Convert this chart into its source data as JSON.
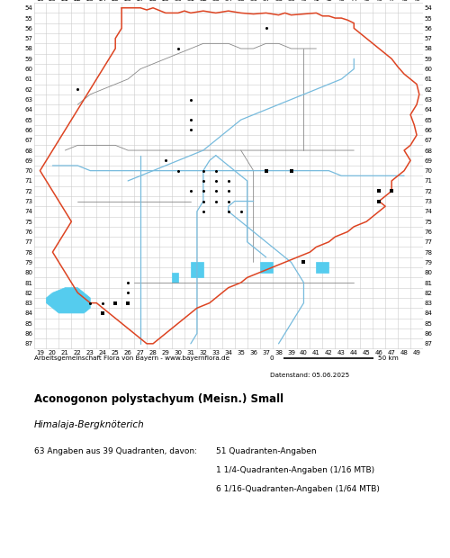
{
  "title": "Aconogonon polystachyum (Meisn.) Small",
  "subtitle": "Himalaja-Bergknöterich",
  "footer_left": "Arbeitsgemeinschaft Flora von Bayern - www.bayernflora.de",
  "footer_date": "Datenstand: 05.06.2025",
  "stats_line1": "63 Angaben aus 39 Quadranten, davon:",
  "stats_col2_line1": "51 Quadranten-Angaben",
  "stats_col2_line2": "1 1/4-Quadranten-Angaben (1/16 MTB)",
  "stats_col2_line3": "6 1/16-Quadranten-Angaben (1/64 MTB)",
  "scale_label": "50 km",
  "scale_zero": "0",
  "x_ticks": [
    19,
    20,
    21,
    22,
    23,
    24,
    25,
    26,
    27,
    28,
    29,
    30,
    31,
    32,
    33,
    34,
    35,
    36,
    37,
    38,
    39,
    40,
    41,
    42,
    43,
    44,
    45,
    46,
    47,
    48,
    49
  ],
  "y_ticks": [
    54,
    55,
    56,
    57,
    58,
    59,
    60,
    61,
    62,
    63,
    64,
    65,
    66,
    67,
    68,
    69,
    70,
    71,
    72,
    73,
    74,
    75,
    76,
    77,
    78,
    79,
    80,
    81,
    82,
    83,
    84,
    85,
    86,
    87
  ],
  "x_min": 19,
  "x_max": 49,
  "y_min": 54,
  "y_max": 87,
  "grid_color": "#cccccc",
  "bg_color": "#ffffff",
  "dot_color": "#000000",
  "square_color": "#000000",
  "occurrence_dots": [
    [
      37,
      56
    ],
    [
      30,
      58
    ],
    [
      22,
      62
    ],
    [
      31,
      63
    ],
    [
      31,
      65
    ],
    [
      31,
      66
    ],
    [
      29,
      69
    ],
    [
      30,
      70
    ],
    [
      32,
      70
    ],
    [
      33,
      70
    ],
    [
      32,
      71
    ],
    [
      33,
      71
    ],
    [
      34,
      71
    ],
    [
      31,
      72
    ],
    [
      32,
      72
    ],
    [
      33,
      72
    ],
    [
      34,
      72
    ],
    [
      32,
      73
    ],
    [
      33,
      73
    ],
    [
      34,
      73
    ],
    [
      32,
      74
    ],
    [
      34,
      74
    ],
    [
      35,
      74
    ],
    [
      40,
      79
    ],
    [
      26,
      81
    ],
    [
      26,
      82
    ],
    [
      23,
      83
    ],
    [
      24,
      83
    ],
    [
      26,
      83
    ],
    [
      24,
      84
    ]
  ],
  "occurrence_squares": [
    [
      39,
      70
    ],
    [
      37,
      70
    ],
    [
      46,
      72
    ],
    [
      47,
      72
    ],
    [
      46,
      73
    ],
    [
      40,
      79
    ],
    [
      26,
      83
    ],
    [
      25,
      83
    ],
    [
      24,
      84
    ]
  ],
  "bavaria_border": [
    [
      25.5,
      54.0
    ],
    [
      26.0,
      54.0
    ],
    [
      27.0,
      54.0
    ],
    [
      27.5,
      54.2
    ],
    [
      28.0,
      54.0
    ],
    [
      29.0,
      54.5
    ],
    [
      30.0,
      54.5
    ],
    [
      30.5,
      54.3
    ],
    [
      31.0,
      54.5
    ],
    [
      32.0,
      54.3
    ],
    [
      33.0,
      54.5
    ],
    [
      34.0,
      54.3
    ],
    [
      35.0,
      54.5
    ],
    [
      36.0,
      54.6
    ],
    [
      37.0,
      54.5
    ],
    [
      38.0,
      54.7
    ],
    [
      38.5,
      54.5
    ],
    [
      39.0,
      54.7
    ],
    [
      40.0,
      54.6
    ],
    [
      41.0,
      54.5
    ],
    [
      41.5,
      54.8
    ],
    [
      42.0,
      54.8
    ],
    [
      42.5,
      55.0
    ],
    [
      43.0,
      55.0
    ],
    [
      43.5,
      55.2
    ],
    [
      44.0,
      55.5
    ],
    [
      44.0,
      56.0
    ],
    [
      44.5,
      56.5
    ],
    [
      45.0,
      57.0
    ],
    [
      45.5,
      57.5
    ],
    [
      46.0,
      58.0
    ],
    [
      46.5,
      58.5
    ],
    [
      47.0,
      59.0
    ],
    [
      47.5,
      59.8
    ],
    [
      48.0,
      60.5
    ],
    [
      48.5,
      61.0
    ],
    [
      49.0,
      61.5
    ],
    [
      49.2,
      62.5
    ],
    [
      49.0,
      63.5
    ],
    [
      48.5,
      64.5
    ],
    [
      48.8,
      65.5
    ],
    [
      49.0,
      66.5
    ],
    [
      48.5,
      67.5
    ],
    [
      48.0,
      68.0
    ],
    [
      48.5,
      69.0
    ],
    [
      48.0,
      70.0
    ],
    [
      47.5,
      70.5
    ],
    [
      47.0,
      71.0
    ],
    [
      47.0,
      72.0
    ],
    [
      46.5,
      72.5
    ],
    [
      46.0,
      73.0
    ],
    [
      46.5,
      73.5
    ],
    [
      46.0,
      74.0
    ],
    [
      45.5,
      74.5
    ],
    [
      45.0,
      75.0
    ],
    [
      44.0,
      75.5
    ],
    [
      43.5,
      76.0
    ],
    [
      42.5,
      76.5
    ],
    [
      42.0,
      77.0
    ],
    [
      41.0,
      77.5
    ],
    [
      40.5,
      78.0
    ],
    [
      39.5,
      78.5
    ],
    [
      38.5,
      79.0
    ],
    [
      37.5,
      79.5
    ],
    [
      36.5,
      80.0
    ],
    [
      35.5,
      80.5
    ],
    [
      35.0,
      81.0
    ],
    [
      34.0,
      81.5
    ],
    [
      33.5,
      82.0
    ],
    [
      33.0,
      82.5
    ],
    [
      32.5,
      83.0
    ],
    [
      31.5,
      83.5
    ],
    [
      31.0,
      84.0
    ],
    [
      30.5,
      84.5
    ],
    [
      30.0,
      85.0
    ],
    [
      29.5,
      85.5
    ],
    [
      29.0,
      86.0
    ],
    [
      28.5,
      86.5
    ],
    [
      28.0,
      87.0
    ],
    [
      27.5,
      87.0
    ],
    [
      27.0,
      86.5
    ],
    [
      26.5,
      86.0
    ],
    [
      26.0,
      85.5
    ],
    [
      25.5,
      85.0
    ],
    [
      25.0,
      84.5
    ],
    [
      24.5,
      84.0
    ],
    [
      24.0,
      83.5
    ],
    [
      23.5,
      83.0
    ],
    [
      23.0,
      83.0
    ],
    [
      22.5,
      82.5
    ],
    [
      22.0,
      82.0
    ],
    [
      21.5,
      81.0
    ],
    [
      21.0,
      80.0
    ],
    [
      20.5,
      79.0
    ],
    [
      20.0,
      78.0
    ],
    [
      20.5,
      77.0
    ],
    [
      21.0,
      76.0
    ],
    [
      21.5,
      75.0
    ],
    [
      21.0,
      74.0
    ],
    [
      20.5,
      73.0
    ],
    [
      20.0,
      72.0
    ],
    [
      19.5,
      71.0
    ],
    [
      19.0,
      70.0
    ],
    [
      19.5,
      69.0
    ],
    [
      20.0,
      68.0
    ],
    [
      20.5,
      67.0
    ],
    [
      21.0,
      66.0
    ],
    [
      21.5,
      65.0
    ],
    [
      22.0,
      64.0
    ],
    [
      22.5,
      63.0
    ],
    [
      23.0,
      62.0
    ],
    [
      23.5,
      61.0
    ],
    [
      24.0,
      60.0
    ],
    [
      24.5,
      59.0
    ],
    [
      25.0,
      58.0
    ],
    [
      25.0,
      57.0
    ],
    [
      25.5,
      56.0
    ],
    [
      25.5,
      55.0
    ],
    [
      25.5,
      54.0
    ]
  ],
  "internal_borders": [
    [
      [
        22.0,
        63.5
      ],
      [
        22.5,
        63.0
      ],
      [
        23.0,
        62.5
      ],
      [
        24.0,
        62.0
      ],
      [
        25.0,
        61.5
      ],
      [
        26.0,
        61.0
      ],
      [
        27.0,
        60.0
      ],
      [
        28.0,
        59.5
      ],
      [
        29.0,
        59.0
      ],
      [
        30.0,
        58.5
      ],
      [
        31.0,
        58.0
      ],
      [
        32.0,
        57.5
      ],
      [
        33.0,
        57.5
      ],
      [
        34.0,
        57.5
      ],
      [
        35.0,
        58.0
      ],
      [
        36.0,
        58.0
      ],
      [
        37.0,
        57.5
      ],
      [
        38.0,
        57.5
      ],
      [
        39.0,
        58.0
      ],
      [
        40.0,
        58.0
      ],
      [
        41.0,
        58.0
      ]
    ],
    [
      [
        21.0,
        68.0
      ],
      [
        22.0,
        67.5
      ],
      [
        23.0,
        67.5
      ],
      [
        24.0,
        67.5
      ],
      [
        25.0,
        67.5
      ],
      [
        26.0,
        68.0
      ],
      [
        27.0,
        68.0
      ],
      [
        28.0,
        68.0
      ],
      [
        29.0,
        68.0
      ],
      [
        30.0,
        68.0
      ],
      [
        31.0,
        68.0
      ],
      [
        32.0,
        68.0
      ],
      [
        33.0,
        68.0
      ],
      [
        34.0,
        68.0
      ],
      [
        35.0,
        68.0
      ],
      [
        36.0,
        68.0
      ],
      [
        37.0,
        68.0
      ],
      [
        38.0,
        68.0
      ],
      [
        39.0,
        68.0
      ],
      [
        40.0,
        68.0
      ],
      [
        41.0,
        68.0
      ],
      [
        42.0,
        68.0
      ],
      [
        43.0,
        68.0
      ],
      [
        44.0,
        68.0
      ]
    ],
    [
      [
        22.0,
        73.0
      ],
      [
        23.0,
        73.0
      ],
      [
        24.0,
        73.0
      ],
      [
        25.0,
        73.0
      ],
      [
        26.0,
        73.0
      ],
      [
        27.0,
        73.0
      ],
      [
        28.0,
        73.0
      ],
      [
        29.0,
        73.0
      ],
      [
        30.0,
        73.0
      ],
      [
        31.0,
        73.0
      ]
    ],
    [
      [
        27.0,
        73.0
      ],
      [
        27.0,
        74.0
      ],
      [
        27.0,
        75.0
      ],
      [
        27.0,
        76.0
      ],
      [
        27.0,
        77.0
      ],
      [
        27.0,
        78.0
      ],
      [
        27.0,
        79.0
      ],
      [
        27.0,
        80.0
      ],
      [
        27.0,
        81.0
      ]
    ],
    [
      [
        35.0,
        68.0
      ],
      [
        35.5,
        69.0
      ],
      [
        36.0,
        70.0
      ],
      [
        36.0,
        71.0
      ],
      [
        36.0,
        72.0
      ],
      [
        36.0,
        73.0
      ],
      [
        36.0,
        74.0
      ],
      [
        36.0,
        75.0
      ],
      [
        36.0,
        76.0
      ],
      [
        36.0,
        77.0
      ],
      [
        36.0,
        78.0
      ],
      [
        36.0,
        79.0
      ]
    ],
    [
      [
        40.0,
        58.0
      ],
      [
        40.0,
        59.0
      ],
      [
        40.0,
        60.0
      ],
      [
        40.0,
        61.0
      ],
      [
        40.0,
        62.0
      ],
      [
        40.0,
        63.0
      ],
      [
        40.0,
        64.0
      ],
      [
        40.0,
        65.0
      ],
      [
        40.0,
        66.0
      ],
      [
        40.0,
        67.0
      ],
      [
        40.0,
        68.0
      ]
    ],
    [
      [
        26.5,
        81.0
      ],
      [
        27.0,
        81.0
      ],
      [
        28.0,
        81.0
      ],
      [
        29.0,
        81.0
      ],
      [
        30.0,
        81.0
      ],
      [
        31.0,
        81.0
      ],
      [
        32.0,
        81.0
      ],
      [
        33.0,
        81.0
      ],
      [
        34.0,
        81.0
      ],
      [
        35.0,
        81.0
      ],
      [
        36.0,
        81.0
      ],
      [
        37.0,
        81.0
      ],
      [
        38.0,
        81.0
      ],
      [
        39.0,
        81.0
      ],
      [
        40.0,
        81.0
      ],
      [
        41.0,
        81.0
      ],
      [
        42.0,
        81.0
      ],
      [
        43.0,
        81.0
      ],
      [
        44.0,
        81.0
      ]
    ]
  ],
  "rivers": [
    [
      [
        26.0,
        71.0
      ],
      [
        27.0,
        70.5
      ],
      [
        28.0,
        70.0
      ],
      [
        29.0,
        69.5
      ],
      [
        30.0,
        69.0
      ],
      [
        31.0,
        68.5
      ],
      [
        32.0,
        68.0
      ],
      [
        33.0,
        67.0
      ],
      [
        34.0,
        66.0
      ],
      [
        35.0,
        65.0
      ],
      [
        36.0,
        64.5
      ],
      [
        37.0,
        64.0
      ],
      [
        38.0,
        63.5
      ],
      [
        39.0,
        63.0
      ],
      [
        40.0,
        62.5
      ],
      [
        41.0,
        62.0
      ],
      [
        42.0,
        61.5
      ],
      [
        43.0,
        61.0
      ],
      [
        43.5,
        60.5
      ],
      [
        44.0,
        60.0
      ],
      [
        44.0,
        59.5
      ],
      [
        44.0,
        59.0
      ]
    ],
    [
      [
        31.0,
        87.0
      ],
      [
        31.5,
        86.0
      ],
      [
        31.5,
        85.0
      ],
      [
        31.5,
        84.0
      ],
      [
        31.5,
        83.0
      ],
      [
        31.5,
        82.0
      ],
      [
        31.5,
        81.0
      ],
      [
        31.5,
        80.0
      ],
      [
        31.5,
        79.0
      ],
      [
        31.5,
        78.0
      ],
      [
        31.5,
        77.0
      ],
      [
        31.5,
        76.0
      ],
      [
        31.5,
        75.0
      ],
      [
        31.5,
        74.0
      ],
      [
        32.0,
        73.0
      ],
      [
        32.0,
        72.0
      ],
      [
        32.0,
        71.0
      ],
      [
        32.0,
        70.0
      ],
      [
        32.5,
        69.0
      ],
      [
        33.0,
        68.5
      ]
    ],
    [
      [
        38.0,
        87.0
      ],
      [
        38.5,
        86.0
      ],
      [
        39.0,
        85.0
      ],
      [
        39.5,
        84.0
      ],
      [
        40.0,
        83.0
      ],
      [
        40.0,
        82.0
      ],
      [
        40.0,
        81.0
      ],
      [
        39.5,
        80.0
      ],
      [
        39.0,
        79.0
      ],
      [
        38.5,
        78.5
      ],
      [
        38.0,
        78.0
      ],
      [
        37.5,
        77.5
      ],
      [
        37.0,
        77.0
      ],
      [
        36.5,
        76.5
      ],
      [
        36.0,
        76.0
      ],
      [
        35.5,
        75.5
      ],
      [
        35.0,
        75.0
      ],
      [
        34.5,
        74.5
      ],
      [
        34.0,
        74.0
      ],
      [
        34.0,
        73.5
      ],
      [
        34.5,
        73.0
      ],
      [
        35.0,
        73.0
      ],
      [
        36.0,
        73.0
      ]
    ],
    [
      [
        27.0,
        87.0
      ],
      [
        27.0,
        86.0
      ],
      [
        27.0,
        85.0
      ],
      [
        27.0,
        84.0
      ],
      [
        27.0,
        83.0
      ],
      [
        27.0,
        82.0
      ],
      [
        27.0,
        81.0
      ],
      [
        27.0,
        80.0
      ],
      [
        27.0,
        79.0
      ],
      [
        27.0,
        78.0
      ],
      [
        27.0,
        77.0
      ],
      [
        27.0,
        76.0
      ],
      [
        27.0,
        75.0
      ],
      [
        27.0,
        74.0
      ],
      [
        27.0,
        73.0
      ],
      [
        27.0,
        72.0
      ],
      [
        27.0,
        71.0
      ],
      [
        27.0,
        70.0
      ],
      [
        27.0,
        69.0
      ],
      [
        27.0,
        68.5
      ]
    ],
    [
      [
        20.0,
        69.5
      ],
      [
        21.0,
        69.5
      ],
      [
        22.0,
        69.5
      ],
      [
        23.0,
        70.0
      ],
      [
        24.0,
        70.0
      ],
      [
        25.0,
        70.0
      ],
      [
        26.0,
        70.0
      ],
      [
        27.0,
        70.0
      ],
      [
        28.0,
        70.0
      ],
      [
        29.0,
        70.0
      ],
      [
        30.0,
        70.0
      ],
      [
        31.0,
        70.0
      ],
      [
        32.0,
        70.0
      ],
      [
        33.0,
        70.0
      ],
      [
        34.0,
        70.0
      ],
      [
        35.0,
        70.0
      ],
      [
        36.0,
        70.0
      ],
      [
        37.0,
        70.0
      ],
      [
        38.0,
        70.0
      ],
      [
        39.0,
        70.0
      ],
      [
        40.0,
        70.0
      ],
      [
        41.0,
        70.0
      ],
      [
        42.0,
        70.0
      ],
      [
        43.0,
        70.5
      ],
      [
        44.0,
        70.5
      ],
      [
        45.0,
        70.5
      ],
      [
        46.0,
        70.5
      ],
      [
        47.0,
        70.5
      ],
      [
        48.0,
        70.5
      ]
    ],
    [
      [
        33.0,
        68.5
      ],
      [
        33.5,
        69.0
      ],
      [
        34.0,
        69.5
      ],
      [
        34.5,
        70.0
      ],
      [
        35.0,
        70.5
      ],
      [
        35.5,
        71.0
      ],
      [
        35.5,
        72.0
      ],
      [
        35.5,
        73.0
      ],
      [
        35.5,
        74.0
      ],
      [
        35.5,
        75.0
      ],
      [
        35.5,
        76.0
      ],
      [
        35.5,
        77.0
      ],
      [
        36.0,
        77.5
      ],
      [
        36.5,
        78.0
      ],
      [
        37.0,
        78.5
      ]
    ]
  ],
  "bodensee": [
    [
      19.5,
      82.5
    ],
    [
      20.0,
      82.0
    ],
    [
      21.0,
      81.5
    ],
    [
      22.0,
      81.5
    ],
    [
      22.5,
      82.0
    ],
    [
      23.0,
      82.5
    ],
    [
      23.0,
      83.5
    ],
    [
      22.5,
      84.0
    ],
    [
      21.5,
      84.0
    ],
    [
      20.5,
      84.0
    ],
    [
      20.0,
      83.5
    ],
    [
      19.5,
      83.0
    ],
    [
      19.5,
      82.5
    ]
  ],
  "lake_starnberg": [
    [
      31.0,
      79.0
    ],
    [
      32.0,
      79.0
    ],
    [
      32.0,
      80.5
    ],
    [
      31.0,
      80.5
    ],
    [
      31.0,
      79.0
    ]
  ],
  "lake_chiemsee": [
    [
      36.5,
      79.0
    ],
    [
      37.5,
      79.0
    ],
    [
      37.5,
      80.0
    ],
    [
      36.5,
      80.0
    ],
    [
      36.5,
      79.0
    ]
  ],
  "lake_ammersee": [
    [
      29.5,
      80.0
    ],
    [
      30.0,
      80.0
    ],
    [
      30.0,
      81.0
    ],
    [
      29.5,
      81.0
    ],
    [
      29.5,
      80.0
    ]
  ],
  "lake_small1": [
    [
      41.0,
      79.0
    ],
    [
      42.0,
      79.0
    ],
    [
      42.0,
      80.0
    ],
    [
      41.0,
      80.0
    ],
    [
      41.0,
      79.0
    ]
  ]
}
